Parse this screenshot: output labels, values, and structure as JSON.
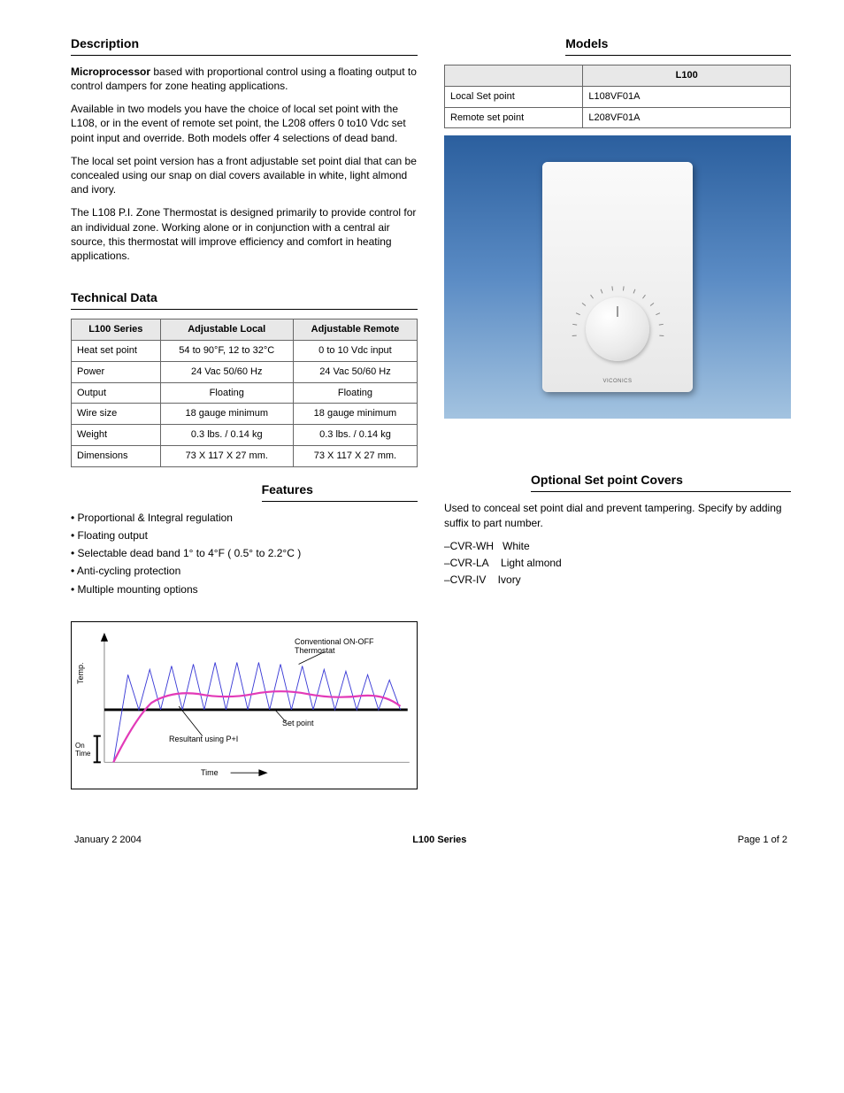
{
  "left": {
    "desc_title": "Description",
    "desc_p1_label": "Microprocessor",
    "desc_p1": " based with proportional control using a floating output to control dampers for zone heating applications.",
    "desc_p2": "Available in two models you have the choice of local set point with the L108, or in the event of remote set point, the L208 offers 0 to10 Vdc set point input and override. Both models offer 4 selections of dead band.",
    "desc_p3": "The local set point version has a front adjustable set point dial that can be concealed using our snap on dial covers available in white, light almond and ivory.",
    "desc_p4": "The L108 P.I. Zone Thermostat is designed primarily to provide control for an individual zone. Working alone or in conjunction with a central air source, this thermostat will improve efficiency and comfort in heating applications.",
    "tech_title": "Technical Data",
    "tech_table": {
      "columns": [
        "L100 Series",
        "Adjustable Local",
        "Adjustable Remote"
      ],
      "rows": [
        [
          "Heat set point",
          "54 to 90°F, 12 to 32°C",
          "0 to 10 Vdc input"
        ],
        [
          "Power",
          "24 Vac 50/60 Hz",
          "24 Vac 50/60 Hz"
        ],
        [
          "Output",
          "Floating",
          "Floating"
        ],
        [
          "Wire size",
          "18 gauge minimum",
          "18 gauge minimum"
        ],
        [
          "Weight",
          "0.3 lbs. / 0.14 kg",
          "0.3 lbs. / 0.14 kg"
        ],
        [
          "Dimensions",
          "73 X 117 X 27 mm.",
          "73 X 117 X 27 mm."
        ]
      ]
    },
    "feat_title": "Features",
    "features": [
      "Proportional & Integral regulation",
      "Floating output",
      "Selectable dead band 1° to 4°F ( 0.5° to 2.2°C )",
      "Anti-cycling protection",
      "Multiple mounting options"
    ],
    "chart_labels": {
      "conventional": "Conventional ON-OFF Thermostat",
      "resultant": "Resultant using P+I",
      "setpoint": "Set point",
      "ontime": "On Time",
      "time": "Time",
      "yaxis": "Temp."
    },
    "chart_style": {
      "setpoint_color": "#000000",
      "pi_color": "#e23ab8",
      "conv_color": "#3a3ad6",
      "axis_color": "#888888",
      "arrow_color": "#000000",
      "setpoint_width": 3,
      "pi_width": 2.2,
      "conv_width": 0.9
    }
  },
  "right": {
    "models_title": "Models",
    "models_table": {
      "columns": [
        "",
        "L100"
      ],
      "rows": [
        [
          "Local Set point",
          "L108VF01A"
        ],
        [
          "Remote set point",
          "L208VF01A"
        ]
      ]
    },
    "opt_title": "Optional Set point Covers",
    "opt_text": "Used to conceal set point dial and prevent tampering. Specify by adding suffix to part number.",
    "opt_list": [
      "–CVR-WH   White",
      "–CVR-LA    Light almond",
      "–CVR-IV    Ivory"
    ]
  },
  "footer": {
    "date": "January 2 2004",
    "title": "L100 Series",
    "page": "Page 1 of 2"
  }
}
